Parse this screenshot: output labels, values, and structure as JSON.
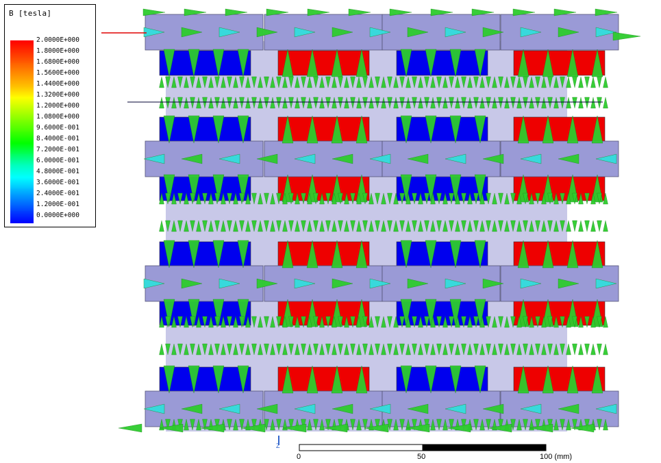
{
  "legend": {
    "title": "B [tesla]",
    "ticks": [
      "2.0000E+000",
      "1.8000E+000",
      "1.6800E+000",
      "1.5600E+000",
      "1.4400E+000",
      "1.3200E+000",
      "1.2000E+000",
      "1.0800E+000",
      "9.6000E-001",
      "8.4000E-001",
      "7.2000E-001",
      "6.0000E-001",
      "4.8000E-001",
      "3.6000E-001",
      "2.4000E-001",
      "1.2000E-001",
      "0.0000E+000"
    ],
    "colors": [
      "#ff0000",
      "#ff3000",
      "#ff6000",
      "#ff9000",
      "#ffc000",
      "#ffff00",
      "#c0ff00",
      "#80ff00",
      "#40ff00",
      "#00ff00",
      "#00ff60",
      "#00ffc0",
      "#00ffff",
      "#00c0ff",
      "#0080ff",
      "#0040ff",
      "#0000ff"
    ]
  },
  "scale": {
    "labels": [
      "0",
      "50",
      "100 (mm)"
    ]
  },
  "axis": {
    "z_label": "Z"
  },
  "colors": {
    "pole": "#9a9ad6",
    "magnet_north": "#ee0000",
    "magnet_south": "#0000ee",
    "body": "#c8c8e8",
    "arrow_green": "#2ecc2e",
    "arrow_cyan": "#33dddd"
  }
}
